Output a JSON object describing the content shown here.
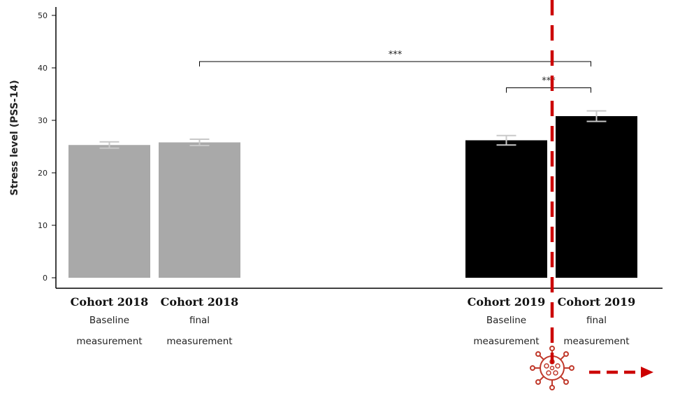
{
  "chart_data": {
    "type": "bar",
    "ylabel": "Stress level (PSS-14)",
    "ylim": [
      0,
      50
    ],
    "yticks": [
      0,
      10,
      20,
      30,
      40,
      50
    ],
    "categories": [
      {
        "title": "Cohort 2018",
        "line1": "Baseline",
        "line2": "measurement"
      },
      {
        "title": "Cohort 2018",
        "line1": "final",
        "line2": "measurement"
      },
      {
        "title": "Cohort 2019",
        "line1": "Baseline",
        "line2": "measurement"
      },
      {
        "title": "Cohort 2019",
        "line1": "final",
        "line2": "measurement"
      }
    ],
    "values": [
      25.3,
      25.8,
      26.2,
      30.8
    ],
    "errors": [
      0.6,
      0.6,
      0.9,
      1.0
    ],
    "bar_colors": [
      "#a9a9a9",
      "#a9a9a9",
      "#000000",
      "#000000"
    ],
    "significance": [
      {
        "label": "***",
        "from_bar": 1,
        "to_bar": 3,
        "y": 41.2
      },
      {
        "label": "***",
        "from_bar": 2,
        "to_bar": 3,
        "y": 36.2
      }
    ],
    "grid": false,
    "legend": "none",
    "event_marker_color": "#cc0000",
    "event_marker_icon": "virus-icon"
  }
}
